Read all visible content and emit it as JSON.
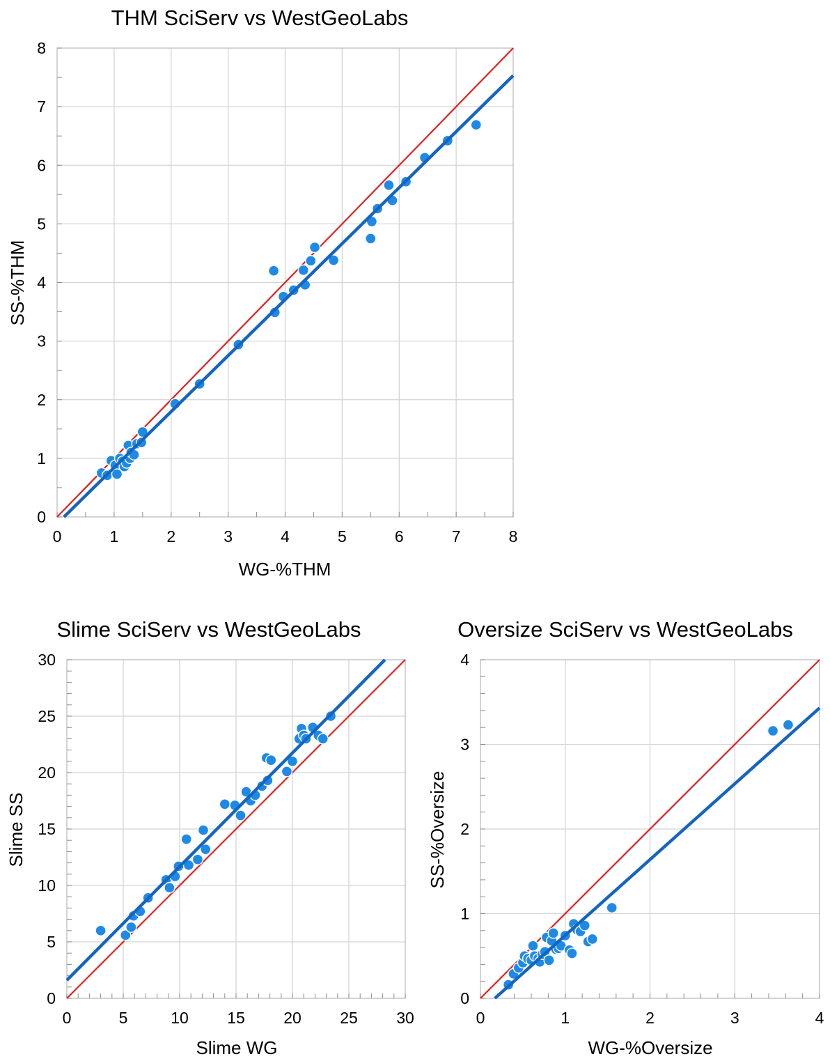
{
  "chart_data": [
    {
      "type": "scatter",
      "title": "THM SciServ vs WestGeoLabs",
      "xlabel": "WG-%THM",
      "ylabel": "SS-%THM",
      "xlim": [
        0,
        8
      ],
      "ylim": [
        0,
        8
      ],
      "xticks": [
        "0",
        "1",
        "2",
        "3",
        "4",
        "5",
        "6",
        "7",
        "8"
      ],
      "yticks": [
        "0",
        "1",
        "2",
        "3",
        "4",
        "5",
        "6",
        "7",
        "8"
      ],
      "grid": true,
      "legend": "none",
      "colors": {
        "points": "#1f8ae6",
        "trend": "#1565c0",
        "identity": "#e02020"
      },
      "points": [
        [
          0.78,
          0.75
        ],
        [
          0.88,
          0.71
        ],
        [
          0.95,
          0.96
        ],
        [
          1.02,
          0.88
        ],
        [
          1.05,
          0.73
        ],
        [
          1.1,
          1.0
        ],
        [
          1.15,
          0.95
        ],
        [
          1.18,
          0.86
        ],
        [
          1.22,
          0.92
        ],
        [
          1.25,
          1.22
        ],
        [
          1.28,
          1.0
        ],
        [
          1.3,
          1.1
        ],
        [
          1.35,
          1.06
        ],
        [
          1.4,
          1.25
        ],
        [
          1.48,
          1.27
        ],
        [
          1.5,
          1.45
        ],
        [
          2.07,
          1.93
        ],
        [
          2.5,
          2.27
        ],
        [
          3.18,
          2.94
        ],
        [
          3.8,
          4.2
        ],
        [
          3.82,
          3.49
        ],
        [
          3.97,
          3.76
        ],
        [
          4.15,
          3.87
        ],
        [
          4.32,
          4.21
        ],
        [
          4.35,
          3.96
        ],
        [
          4.45,
          4.37
        ],
        [
          4.52,
          4.6
        ],
        [
          4.85,
          4.38
        ],
        [
          5.5,
          4.75
        ],
        [
          5.52,
          5.04
        ],
        [
          5.62,
          5.26
        ],
        [
          5.82,
          5.66
        ],
        [
          5.88,
          5.4
        ],
        [
          6.12,
          5.72
        ],
        [
          6.45,
          6.13
        ],
        [
          6.85,
          6.42
        ],
        [
          7.35,
          6.69
        ]
      ],
      "trendline": {
        "x": [
          0.12,
          8.0
        ],
        "y": [
          0.0,
          7.53
        ]
      },
      "identity_line": {
        "x": [
          0,
          8
        ],
        "y": [
          0,
          8
        ]
      }
    },
    {
      "type": "scatter",
      "title": "Slime SciServ vs WestGeoLabs",
      "xlabel": "Slime WG",
      "ylabel": "Slime SS",
      "xlim": [
        0,
        30
      ],
      "ylim": [
        0,
        30
      ],
      "xticks": [
        "0",
        "5",
        "10",
        "15",
        "20",
        "25",
        "30"
      ],
      "yticks": [
        "0",
        "5",
        "10",
        "15",
        "20",
        "25",
        "30"
      ],
      "grid": true,
      "legend": "none",
      "colors": {
        "points": "#1f8ae6",
        "trend": "#1565c0",
        "identity": "#e02020"
      },
      "points": [
        [
          3.0,
          6.0
        ],
        [
          5.2,
          5.6
        ],
        [
          5.7,
          6.3
        ],
        [
          5.9,
          7.3
        ],
        [
          6.5,
          7.7
        ],
        [
          7.2,
          8.9
        ],
        [
          8.8,
          10.5
        ],
        [
          9.1,
          9.8
        ],
        [
          9.6,
          10.8
        ],
        [
          9.9,
          11.7
        ],
        [
          10.6,
          14.1
        ],
        [
          10.8,
          11.8
        ],
        [
          11.6,
          12.3
        ],
        [
          12.1,
          14.9
        ],
        [
          12.3,
          13.2
        ],
        [
          14.0,
          17.2
        ],
        [
          14.9,
          17.1
        ],
        [
          15.4,
          16.2
        ],
        [
          15.9,
          18.3
        ],
        [
          16.3,
          17.5
        ],
        [
          16.7,
          18.0
        ],
        [
          17.3,
          18.8
        ],
        [
          17.7,
          21.3
        ],
        [
          17.8,
          19.3
        ],
        [
          18.1,
          21.1
        ],
        [
          19.5,
          20.1
        ],
        [
          20.0,
          21.0
        ],
        [
          20.6,
          23.0
        ],
        [
          20.8,
          23.9
        ],
        [
          21.0,
          23.3
        ],
        [
          21.2,
          23.0
        ],
        [
          21.8,
          24.0
        ],
        [
          22.3,
          23.3
        ],
        [
          22.7,
          23.0
        ],
        [
          23.4,
          25.0
        ]
      ],
      "trendline": {
        "x": [
          0,
          28.2
        ],
        "y": [
          1.6,
          30.0
        ]
      },
      "identity_line": {
        "x": [
          0,
          30
        ],
        "y": [
          0,
          30
        ]
      }
    },
    {
      "type": "scatter",
      "title": "Oversize SciServ vs WestGeoLabs",
      "xlabel": "WG-%Oversize",
      "ylabel": "SS-%Oversize",
      "xlim": [
        0,
        4
      ],
      "ylim": [
        0,
        4
      ],
      "xticks": [
        "0",
        "1",
        "2",
        "3",
        "4"
      ],
      "yticks": [
        "0",
        "1",
        "2",
        "3",
        "4"
      ],
      "grid": true,
      "legend": "none",
      "colors": {
        "points": "#1f8ae6",
        "trend": "#1565c0",
        "identity": "#e02020"
      },
      "points": [
        [
          0.33,
          0.16
        ],
        [
          0.39,
          0.29
        ],
        [
          0.45,
          0.36
        ],
        [
          0.5,
          0.42
        ],
        [
          0.52,
          0.5
        ],
        [
          0.56,
          0.47
        ],
        [
          0.6,
          0.45
        ],
        [
          0.62,
          0.62
        ],
        [
          0.64,
          0.5
        ],
        [
          0.68,
          0.47
        ],
        [
          0.7,
          0.43
        ],
        [
          0.73,
          0.52
        ],
        [
          0.76,
          0.55
        ],
        [
          0.78,
          0.72
        ],
        [
          0.81,
          0.45
        ],
        [
          0.84,
          0.68
        ],
        [
          0.86,
          0.77
        ],
        [
          0.89,
          0.58
        ],
        [
          0.92,
          0.59
        ],
        [
          0.95,
          0.62
        ],
        [
          1.0,
          0.74
        ],
        [
          1.05,
          0.57
        ],
        [
          1.08,
          0.53
        ],
        [
          1.1,
          0.88
        ],
        [
          1.14,
          0.81
        ],
        [
          1.18,
          0.79
        ],
        [
          1.23,
          0.86
        ],
        [
          1.27,
          0.67
        ],
        [
          1.32,
          0.7
        ],
        [
          1.55,
          1.07
        ],
        [
          3.45,
          3.16
        ],
        [
          3.63,
          3.23
        ]
      ],
      "trendline": {
        "x": [
          0.17,
          4.0
        ],
        "y": [
          0.0,
          3.43
        ]
      },
      "identity_line": {
        "x": [
          0,
          4
        ],
        "y": [
          0,
          4
        ]
      }
    }
  ]
}
